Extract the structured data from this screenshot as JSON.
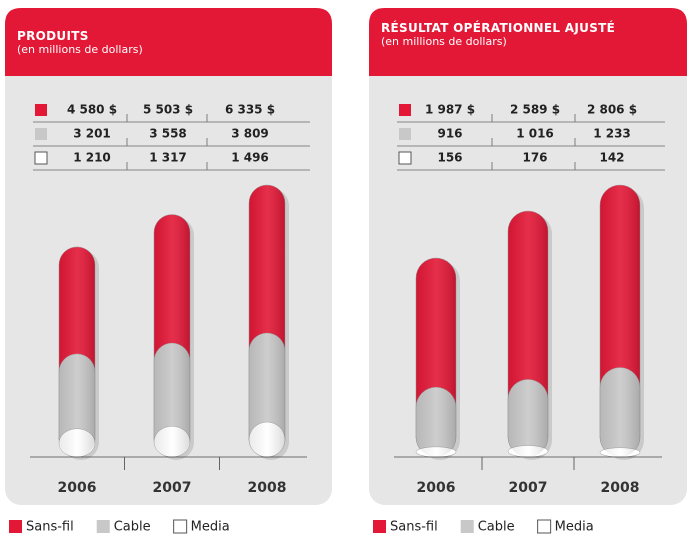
{
  "chart_data": [
    {
      "type": "bar",
      "title": "PRODUITS",
      "subtitle": "(en millions de dollars)",
      "categories": [
        "2006",
        "2007",
        "2008"
      ],
      "series": [
        {
          "name": "Sans-fil",
          "color": "#e31837",
          "values": [
            4580,
            5503,
            6335
          ],
          "value_labels": [
            "4 580 $",
            "5 503 $",
            "6 335 $"
          ]
        },
        {
          "name": "Cable",
          "color": "#c8c8c8",
          "values": [
            3201,
            3558,
            3809
          ],
          "value_labels": [
            "3 201",
            "3 558",
            "3 809"
          ]
        },
        {
          "name": "Media",
          "color": "#ffffff",
          "values": [
            1210,
            1317,
            1496
          ],
          "value_labels": [
            "1 210",
            "1 317",
            "1 496"
          ]
        }
      ]
    },
    {
      "type": "bar",
      "title": "RÉSULTAT OPÉRATIONNEL AJUSTÉ",
      "subtitle": "(en millions de dollars)",
      "categories": [
        "2006",
        "2007",
        "2008"
      ],
      "series": [
        {
          "name": "Sans-fil",
          "color": "#e31837",
          "values": [
            1987,
            2589,
            2806
          ],
          "value_labels": [
            "1 987 $",
            "2 589 $",
            "2 806 $"
          ]
        },
        {
          "name": "Cable",
          "color": "#c8c8c8",
          "values": [
            916,
            1016,
            1233
          ],
          "value_labels": [
            "916",
            "1 016",
            "1 233"
          ]
        },
        {
          "name": "Media",
          "color": "#ffffff",
          "values": [
            156,
            176,
            142
          ],
          "value_labels": [
            "156",
            "176",
            "142"
          ]
        }
      ]
    }
  ]
}
